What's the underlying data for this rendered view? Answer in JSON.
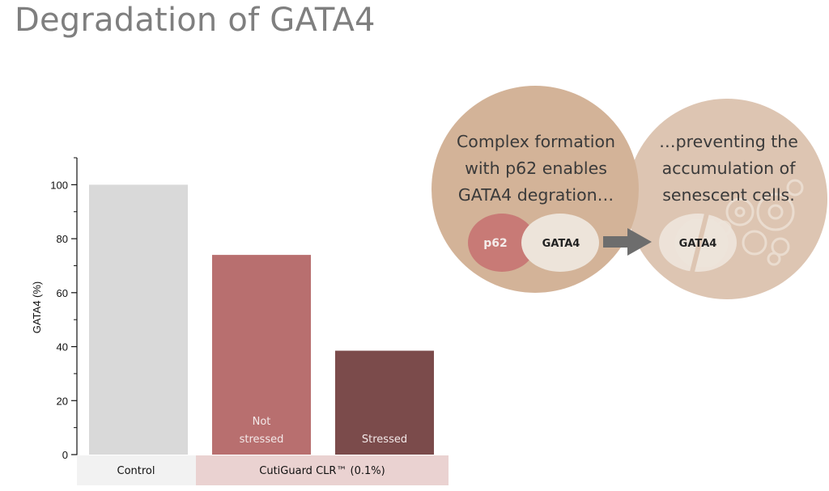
{
  "slide": {
    "title": "Degradation of GATA4"
  },
  "chart_data": {
    "type": "bar",
    "categories": [
      "Control",
      "Not stressed",
      "Stressed"
    ],
    "category_labels": [
      [
        "Control"
      ],
      [
        "Not",
        "stressed"
      ],
      [
        "Stressed"
      ]
    ],
    "values": [
      100,
      74,
      38.5
    ],
    "colors": [
      "#d9d9d9",
      "#b86f6f",
      "#7b4b4b"
    ],
    "ylabel": "GATA4 (%)",
    "ylim": [
      0,
      110
    ],
    "yticks": [
      0,
      20,
      40,
      60,
      80,
      100
    ],
    "group_labels": {
      "control": "Control",
      "treatment": "CutiGuard CLR™ (0.1%)"
    },
    "grid": false
  },
  "schematic": {
    "left_circle": {
      "lines": [
        "Complex formation",
        "with p62 enables",
        "GATA4 degration…"
      ],
      "p62_label": "p62",
      "gata4_label": "GATA4"
    },
    "right_circle": {
      "lines": [
        "…preventing the",
        "accumulation of",
        "senescent cells."
      ],
      "gata4_label": "GATA4"
    },
    "colors": {
      "left_circle": "#d3b398",
      "right_circle": "#ddc5b2",
      "p62": "#c87a76",
      "gata4": "#ede4da",
      "arrow": "#6d6d6d"
    },
    "icons": [
      "arrow-right-icon",
      "senescent-cell-icon"
    ]
  }
}
